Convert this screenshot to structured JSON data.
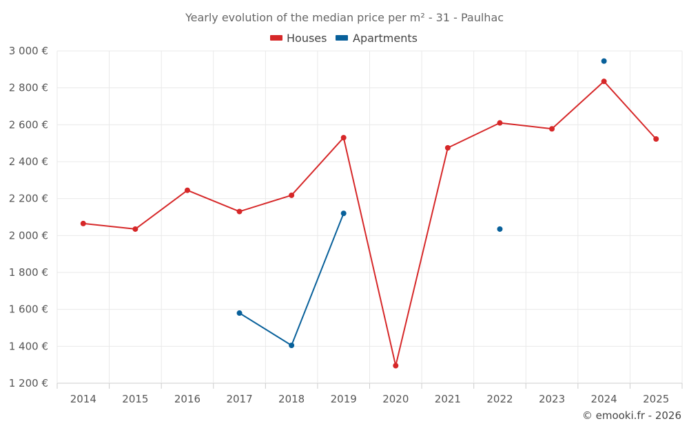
{
  "chart_data": {
    "type": "line",
    "title": "Yearly evolution of the median price per m² - 31 - Paulhac",
    "categories": [
      "2014",
      "2015",
      "2016",
      "2017",
      "2018",
      "2019",
      "2020",
      "2021",
      "2022",
      "2023",
      "2024",
      "2025"
    ],
    "series": [
      {
        "name": "Houses",
        "color": "#d62728",
        "values": [
          2065,
          2035,
          2245,
          2130,
          2218,
          2530,
          1295,
          2475,
          2610,
          2578,
          2835,
          2523
        ]
      },
      {
        "name": "Apartments",
        "color": "#08609a",
        "values": [
          null,
          null,
          null,
          1580,
          1405,
          2120,
          null,
          null,
          2035,
          null,
          2945,
          null
        ]
      }
    ],
    "ylim": [
      1200,
      3000
    ],
    "yticks": [
      1200,
      1400,
      1600,
      1800,
      2000,
      2200,
      2400,
      2600,
      2800,
      3000
    ],
    "ytick_labels": [
      "1 200 €",
      "1 400 €",
      "1 600 €",
      "1 800 €",
      "2 000 €",
      "2 200 €",
      "2 400 €",
      "2 600 €",
      "2 800 €",
      "3 000 €"
    ],
    "xlabel": "",
    "ylabel": "",
    "legend_position": "top-center",
    "grid": true
  },
  "credit": "© emooki.fr - 2026"
}
